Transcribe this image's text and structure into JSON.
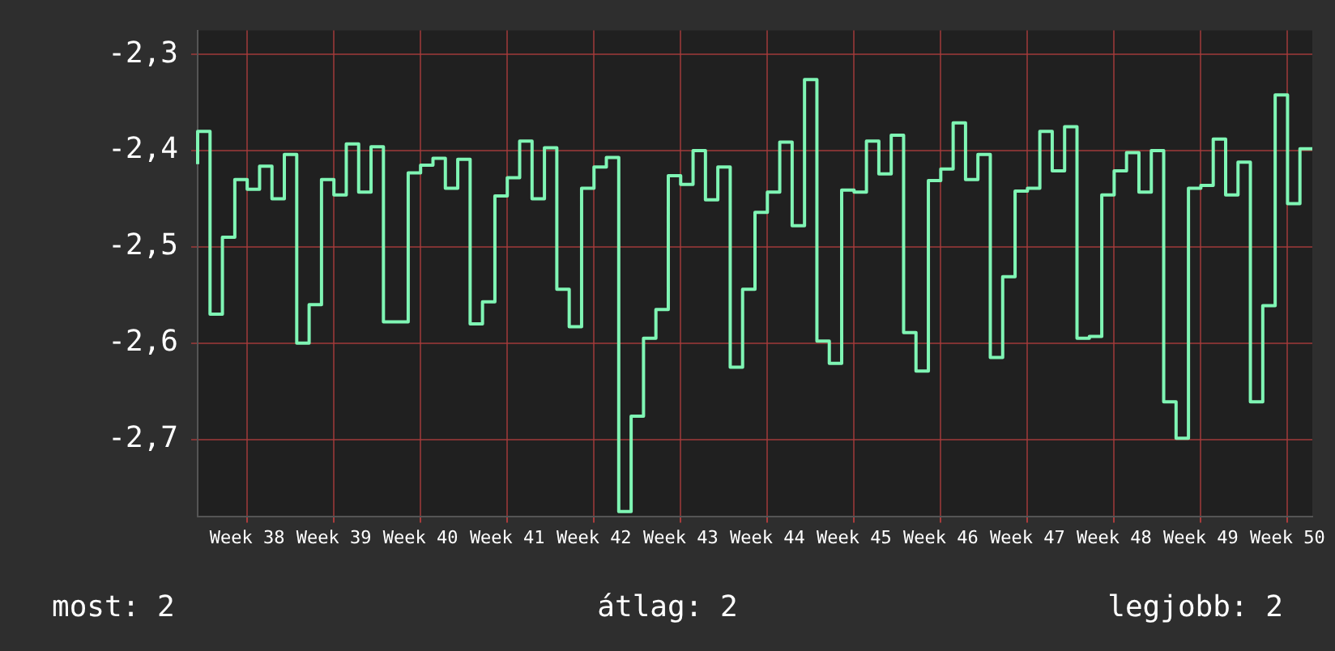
{
  "chart_data": {
    "type": "step",
    "categories": [
      null,
      null,
      null,
      null,
      "Week 38",
      null,
      null,
      null,
      null,
      null,
      null,
      "Week 39",
      null,
      null,
      null,
      null,
      null,
      null,
      "Week 40",
      null,
      null,
      null,
      null,
      null,
      null,
      "Week 41",
      null,
      null,
      null,
      null,
      null,
      null,
      "Week 42",
      null,
      null,
      null,
      null,
      null,
      null,
      "Week 43",
      null,
      null,
      null,
      null,
      null,
      null,
      "Week 44",
      null,
      null,
      null,
      null,
      null,
      null,
      "Week 45",
      null,
      null,
      null,
      null,
      null,
      null,
      "Week 46",
      null,
      null,
      null,
      null,
      null,
      null,
      "Week 47",
      null,
      null,
      null,
      null,
      null,
      null,
      "Week 48",
      null,
      null,
      null,
      null,
      null,
      null,
      "Week 49",
      null,
      null,
      null,
      null,
      null,
      null,
      "Week 50",
      null,
      null
    ],
    "series": [
      {
        "color": "#7ff5b4",
        "values": [
          -2.414,
          -2.38,
          -2.57,
          -2.49,
          -2.43,
          -2.44,
          -2.416,
          -2.45,
          -2.404,
          -2.6,
          -2.56,
          -2.43,
          -2.446,
          -2.393,
          -2.443,
          -2.396,
          -2.578,
          -2.578,
          -2.423,
          -2.415,
          -2.408,
          -2.439,
          -2.409,
          -2.58,
          -2.557,
          -2.447,
          -2.428,
          -2.39,
          -2.45,
          -2.397,
          -2.544,
          -2.583,
          -2.439,
          -2.417,
          -2.407,
          -2.775,
          -2.676,
          -2.595,
          -2.565,
          -2.426,
          -2.435,
          -2.4,
          -2.451,
          -2.417,
          -2.625,
          -2.544,
          -2.464,
          -2.443,
          -2.391,
          -2.478,
          -2.326,
          -2.598,
          -2.621,
          -2.441,
          -2.443,
          -2.39,
          -2.424,
          -2.384,
          -2.589,
          -2.629,
          -2.431,
          -2.419,
          -2.371,
          -2.43,
          -2.404,
          -2.615,
          -2.531,
          -2.442,
          -2.439,
          -2.38,
          -2.421,
          -2.375,
          -2.595,
          -2.593,
          -2.446,
          -2.421,
          -2.402,
          -2.443,
          -2.4,
          -2.661,
          -2.699,
          -2.439,
          -2.436,
          -2.388,
          -2.446,
          -2.412,
          -2.661,
          -2.561,
          -2.342,
          -2.455,
          -2.398
        ]
      }
    ],
    "ylim": [
      -2.78,
      -2.275
    ],
    "yticks": [
      {
        "value": -2.7,
        "label": "-2,7"
      },
      {
        "value": -2.6,
        "label": "-2,6"
      },
      {
        "value": -2.5,
        "label": "-2,5"
      },
      {
        "value": -2.4,
        "label": "-2,4"
      },
      {
        "value": -2.3,
        "label": "-2,3"
      }
    ],
    "grid": true,
    "legend": false,
    "annotations": [
      "most: 2",
      "átlag: 2",
      "legjobb: 2"
    ]
  }
}
